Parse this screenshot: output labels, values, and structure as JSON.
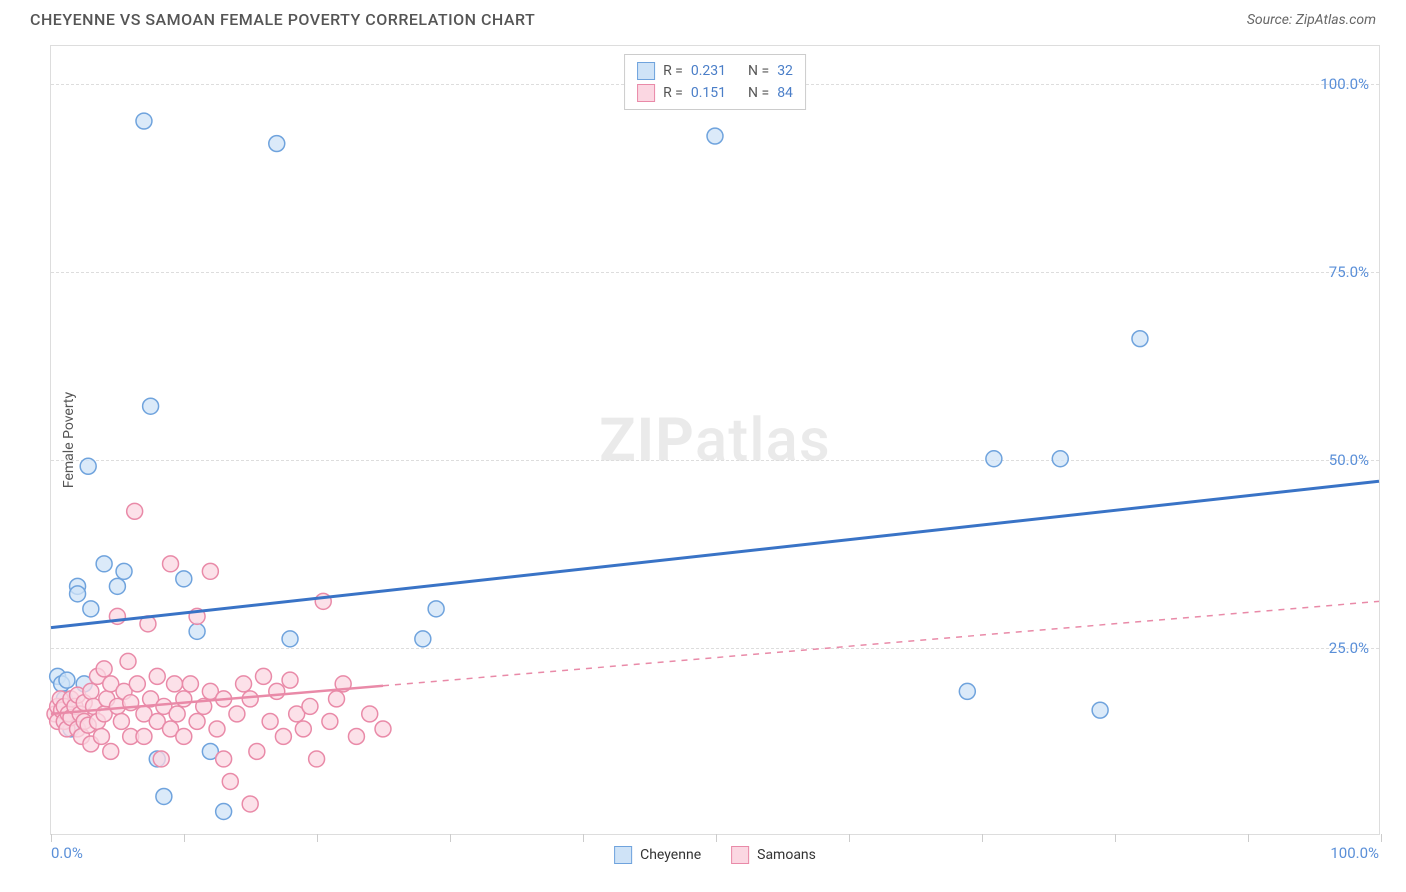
{
  "title": "CHEYENNE VS SAMOAN FEMALE POVERTY CORRELATION CHART",
  "source": "Source: ZipAtlas.com",
  "watermark_zip": "ZIP",
  "watermark_atlas": "atlas",
  "ylabel": "Female Poverty",
  "chart": {
    "type": "scatter",
    "background_color": "#ffffff",
    "grid_color": "#dddddd",
    "grid_dash": "4,4",
    "xlim": [
      0,
      100
    ],
    "ylim": [
      0,
      105
    ],
    "x_tick_positions": [
      0,
      10,
      20,
      30,
      40,
      50,
      60,
      70,
      80,
      90,
      100
    ],
    "x_axis_labels": [
      {
        "pos": 0,
        "label": "0.0%"
      },
      {
        "pos": 100,
        "label": "100.0%"
      }
    ],
    "y_ticks": [
      {
        "pos": 25,
        "label": "25.0%"
      },
      {
        "pos": 50,
        "label": "50.0%"
      },
      {
        "pos": 75,
        "label": "75.0%"
      },
      {
        "pos": 100,
        "label": "100.0%"
      }
    ],
    "series": [
      {
        "name": "Cheyenne",
        "marker_fill": "#cfe3f7",
        "marker_stroke": "#6fa3dd",
        "marker_radius": 8,
        "trend_color": "#3973c6",
        "trend_width": 3,
        "trend_solid_range": [
          0,
          100
        ],
        "trend": {
          "x1": 0,
          "y1": 27.5,
          "x2": 100,
          "y2": 47
        },
        "R": "0.231",
        "N": "32",
        "points": [
          [
            0.5,
            21
          ],
          [
            0.8,
            20
          ],
          [
            1,
            18
          ],
          [
            1,
            15
          ],
          [
            1.2,
            20.5
          ],
          [
            1.5,
            14
          ],
          [
            2,
            33
          ],
          [
            2,
            32
          ],
          [
            2.5,
            20
          ],
          [
            2.8,
            49
          ],
          [
            3,
            30
          ],
          [
            4,
            36
          ],
          [
            5,
            33
          ],
          [
            5.5,
            35
          ],
          [
            7,
            95
          ],
          [
            7.5,
            57
          ],
          [
            8,
            10
          ],
          [
            8.5,
            5
          ],
          [
            10,
            34
          ],
          [
            11,
            27
          ],
          [
            12,
            11
          ],
          [
            13,
            3
          ],
          [
            17,
            92
          ],
          [
            18,
            26
          ],
          [
            28,
            26
          ],
          [
            29,
            30
          ],
          [
            50,
            93
          ],
          [
            69,
            19
          ],
          [
            71,
            50
          ],
          [
            76,
            50
          ],
          [
            79,
            16.5
          ],
          [
            82,
            66
          ]
        ]
      },
      {
        "name": "Samoans",
        "marker_fill": "#fbd7e2",
        "marker_stroke": "#e98aa8",
        "marker_radius": 8,
        "trend_color": "#e98aa8",
        "trend_width": 2.5,
        "trend_solid_range": [
          0,
          25
        ],
        "trend": {
          "x1": 0,
          "y1": 16,
          "x2": 100,
          "y2": 31
        },
        "R": "0.151",
        "N": "84",
        "points": [
          [
            0.3,
            16
          ],
          [
            0.5,
            15
          ],
          [
            0.5,
            17
          ],
          [
            0.7,
            18
          ],
          [
            0.8,
            16.5
          ],
          [
            1,
            17
          ],
          [
            1,
            15
          ],
          [
            1.2,
            14
          ],
          [
            1.3,
            16
          ],
          [
            1.5,
            15.5
          ],
          [
            1.5,
            18
          ],
          [
            1.8,
            17
          ],
          [
            2,
            18.5
          ],
          [
            2,
            14
          ],
          [
            2.2,
            16
          ],
          [
            2.3,
            13
          ],
          [
            2.5,
            15
          ],
          [
            2.5,
            17.5
          ],
          [
            2.8,
            14.5
          ],
          [
            3,
            12
          ],
          [
            3,
            19
          ],
          [
            3.2,
            17
          ],
          [
            3.5,
            21
          ],
          [
            3.5,
            15
          ],
          [
            3.8,
            13
          ],
          [
            4,
            22
          ],
          [
            4,
            16
          ],
          [
            4.2,
            18
          ],
          [
            4.5,
            20
          ],
          [
            4.5,
            11
          ],
          [
            5,
            29
          ],
          [
            5,
            17
          ],
          [
            5.3,
            15
          ],
          [
            5.5,
            19
          ],
          [
            5.8,
            23
          ],
          [
            6,
            13
          ],
          [
            6,
            17.5
          ],
          [
            6.3,
            43
          ],
          [
            6.5,
            20
          ],
          [
            7,
            16
          ],
          [
            7,
            13
          ],
          [
            7.3,
            28
          ],
          [
            7.5,
            18
          ],
          [
            8,
            21
          ],
          [
            8,
            15
          ],
          [
            8.3,
            10
          ],
          [
            8.5,
            17
          ],
          [
            9,
            36
          ],
          [
            9,
            14
          ],
          [
            9.3,
            20
          ],
          [
            9.5,
            16
          ],
          [
            10,
            18
          ],
          [
            10,
            13
          ],
          [
            10.5,
            20
          ],
          [
            11,
            29
          ],
          [
            11,
            15
          ],
          [
            11.5,
            17
          ],
          [
            12,
            35
          ],
          [
            12,
            19
          ],
          [
            12.5,
            14
          ],
          [
            13,
            10
          ],
          [
            13,
            18
          ],
          [
            13.5,
            7
          ],
          [
            14,
            16
          ],
          [
            14.5,
            20
          ],
          [
            15,
            4
          ],
          [
            15,
            18
          ],
          [
            15.5,
            11
          ],
          [
            16,
            21
          ],
          [
            16.5,
            15
          ],
          [
            17,
            19
          ],
          [
            17.5,
            13
          ],
          [
            18,
            20.5
          ],
          [
            18.5,
            16
          ],
          [
            19,
            14
          ],
          [
            19.5,
            17
          ],
          [
            20,
            10
          ],
          [
            20.5,
            31
          ],
          [
            21,
            15
          ],
          [
            21.5,
            18
          ],
          [
            22,
            20
          ],
          [
            23,
            13
          ],
          [
            24,
            16
          ],
          [
            25,
            14
          ]
        ]
      }
    ]
  },
  "legend_top_label_R": "R =",
  "legend_top_label_N": "N =",
  "legend_bottom": [
    {
      "swatch_fill": "#cfe3f7",
      "swatch_stroke": "#6fa3dd",
      "label": "Cheyenne"
    },
    {
      "swatch_fill": "#fbd7e2",
      "swatch_stroke": "#e98aa8",
      "label": "Samoans"
    }
  ]
}
